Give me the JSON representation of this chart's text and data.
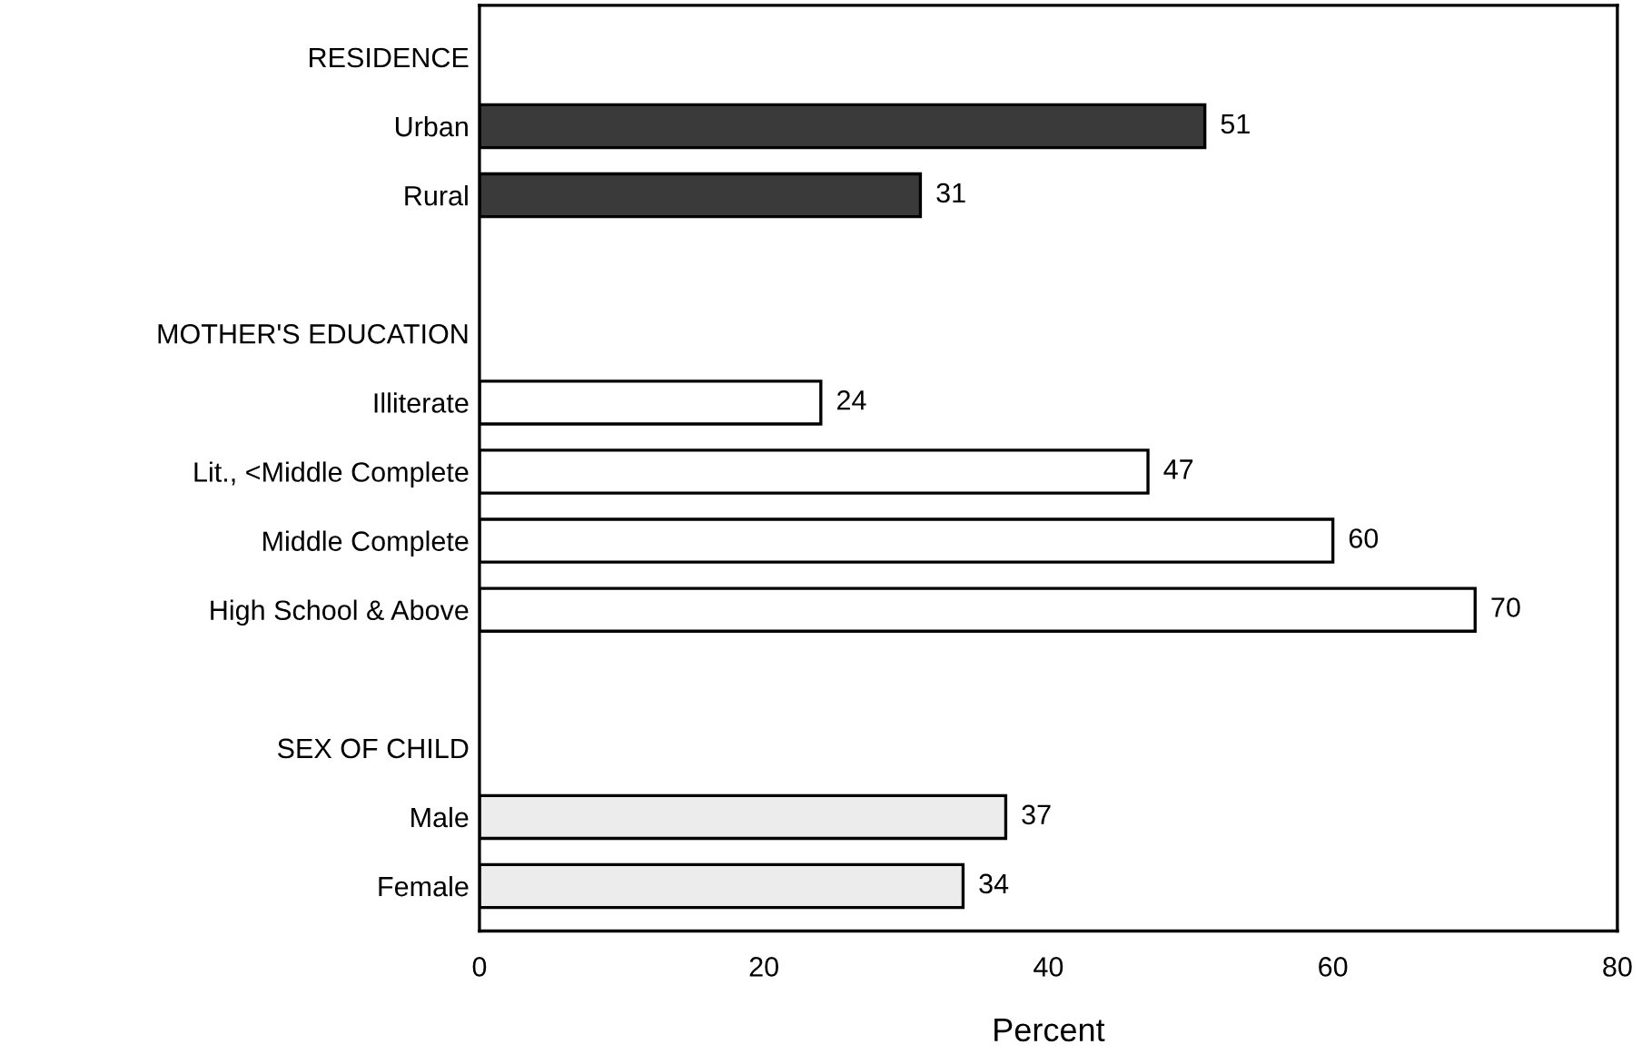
{
  "chart_data": {
    "type": "bar",
    "orientation": "horizontal",
    "xlabel": "Percent",
    "categories": [
      "RESIDENCE",
      "Urban",
      "Rural",
      null,
      "MOTHER'S EDUCATION",
      "Illiterate",
      "Lit., <Middle Complete",
      "Middle Complete",
      "High School & Above",
      null,
      "SEX OF CHILD",
      "Male",
      "Female"
    ],
    "values": [
      null,
      51,
      31,
      null,
      null,
      24,
      47,
      60,
      70,
      null,
      null,
      37,
      34
    ],
    "colors": [
      "#ffffff",
      "#3a3a3a",
      "#3a3a3a",
      "#ffffff",
      "#ffffff",
      "#ffffff",
      "#ffffff",
      "#ffffff",
      "#ffffff",
      "#ffffff",
      "#ffffff",
      "#ececec",
      "#ececec"
    ],
    "xlim": [
      0,
      80
    ],
    "xticks": [
      0,
      20,
      40,
      60,
      80
    ],
    "data_labels": true,
    "grid": false,
    "legend": false
  }
}
